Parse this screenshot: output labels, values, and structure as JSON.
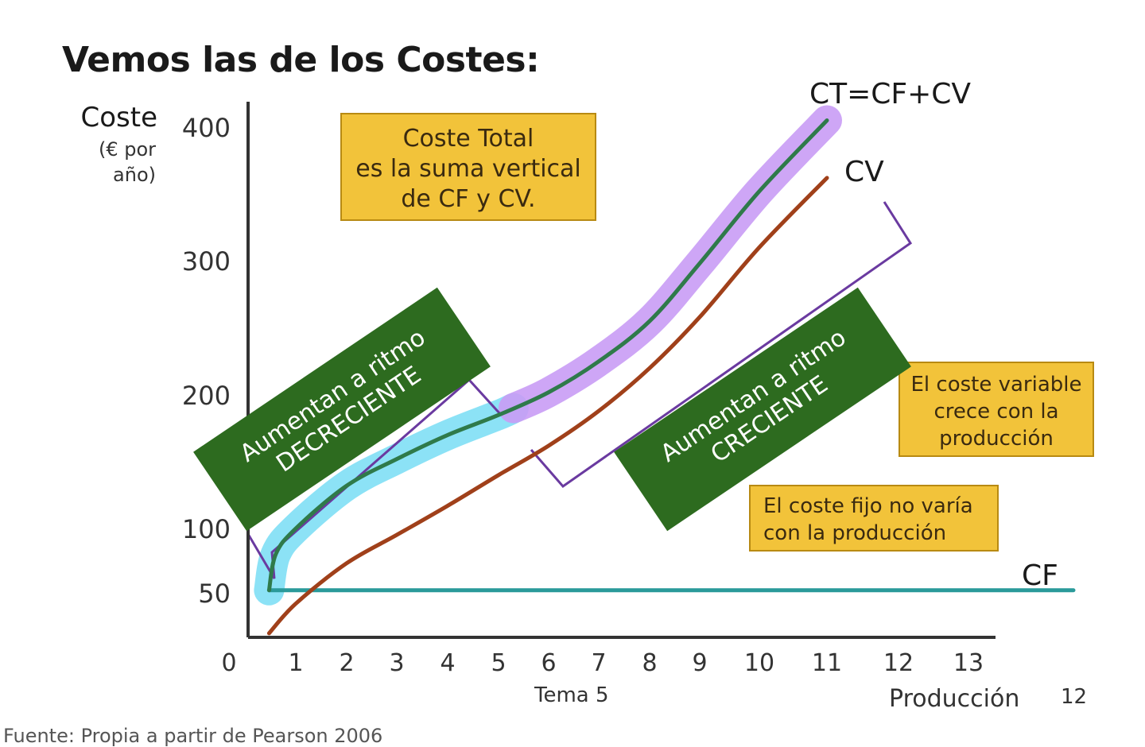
{
  "slide": {
    "title": "Vemos las de los Costes:",
    "topic": "Tema 5",
    "page_number": "12",
    "source": "Fuente: Propia a partir de Pearson 2006"
  },
  "callouts": {
    "total": [
      "Coste Total",
      "es la suma vertical",
      "de CF y CV."
    ],
    "variable": [
      "El coste variable",
      "crece con la",
      "producción"
    ],
    "fixed": [
      "El coste fijo no varía",
      "con la producción"
    ]
  },
  "banners": {
    "decreasing": [
      "Aumentan a ritmo",
      "DECRECIENTE"
    ],
    "increasing": [
      "Aumentan a ritmo",
      "CRECIENTE"
    ]
  },
  "chart_data": {
    "type": "line",
    "ylabel": "Coste",
    "ylabel_unit": [
      "(€ por",
      "año)"
    ],
    "xlabel": "Producción",
    "x_ticks": [
      "0",
      "1",
      "2",
      "3",
      "4",
      "5",
      "6",
      "7",
      "8",
      "9",
      "10",
      "11",
      "12",
      "13"
    ],
    "y_ticks": [
      "50",
      "100",
      "200",
      "300",
      "400"
    ],
    "xlim": [
      0,
      14.5
    ],
    "ylim": [
      17,
      410
    ],
    "grid": false,
    "series": [
      {
        "name": "CF",
        "color": "#2a9a9a",
        "x": [
          0.6,
          1,
          2,
          4,
          6,
          8,
          10,
          12,
          14.5
        ],
        "y": [
          52,
          52,
          52,
          52,
          52,
          52,
          52,
          52,
          52
        ]
      },
      {
        "name": "CV",
        "color": "#a0401a",
        "x": [
          0.6,
          1,
          2,
          3,
          4,
          5,
          6,
          7,
          8,
          9,
          10,
          11
        ],
        "y": [
          20,
          42,
          73,
          95,
          117,
          140,
          162,
          188,
          220,
          258,
          310,
          362
        ]
      },
      {
        "name": "CT=CF+CV",
        "color": "#2f7a4a",
        "x": [
          0.6,
          0.7,
          1,
          2,
          3,
          4,
          5,
          6,
          7,
          8,
          9,
          10,
          11
        ],
        "y": [
          52,
          80,
          100,
          132,
          152,
          170,
          185,
          202,
          225,
          255,
          298,
          352,
          405
        ]
      }
    ],
    "highlights": [
      {
        "color": "#7fdff5",
        "x_range": [
          0.6,
          5.3
        ]
      },
      {
        "color": "#c99cf5",
        "x_range": [
          5.3,
          11.2
        ]
      }
    ]
  }
}
